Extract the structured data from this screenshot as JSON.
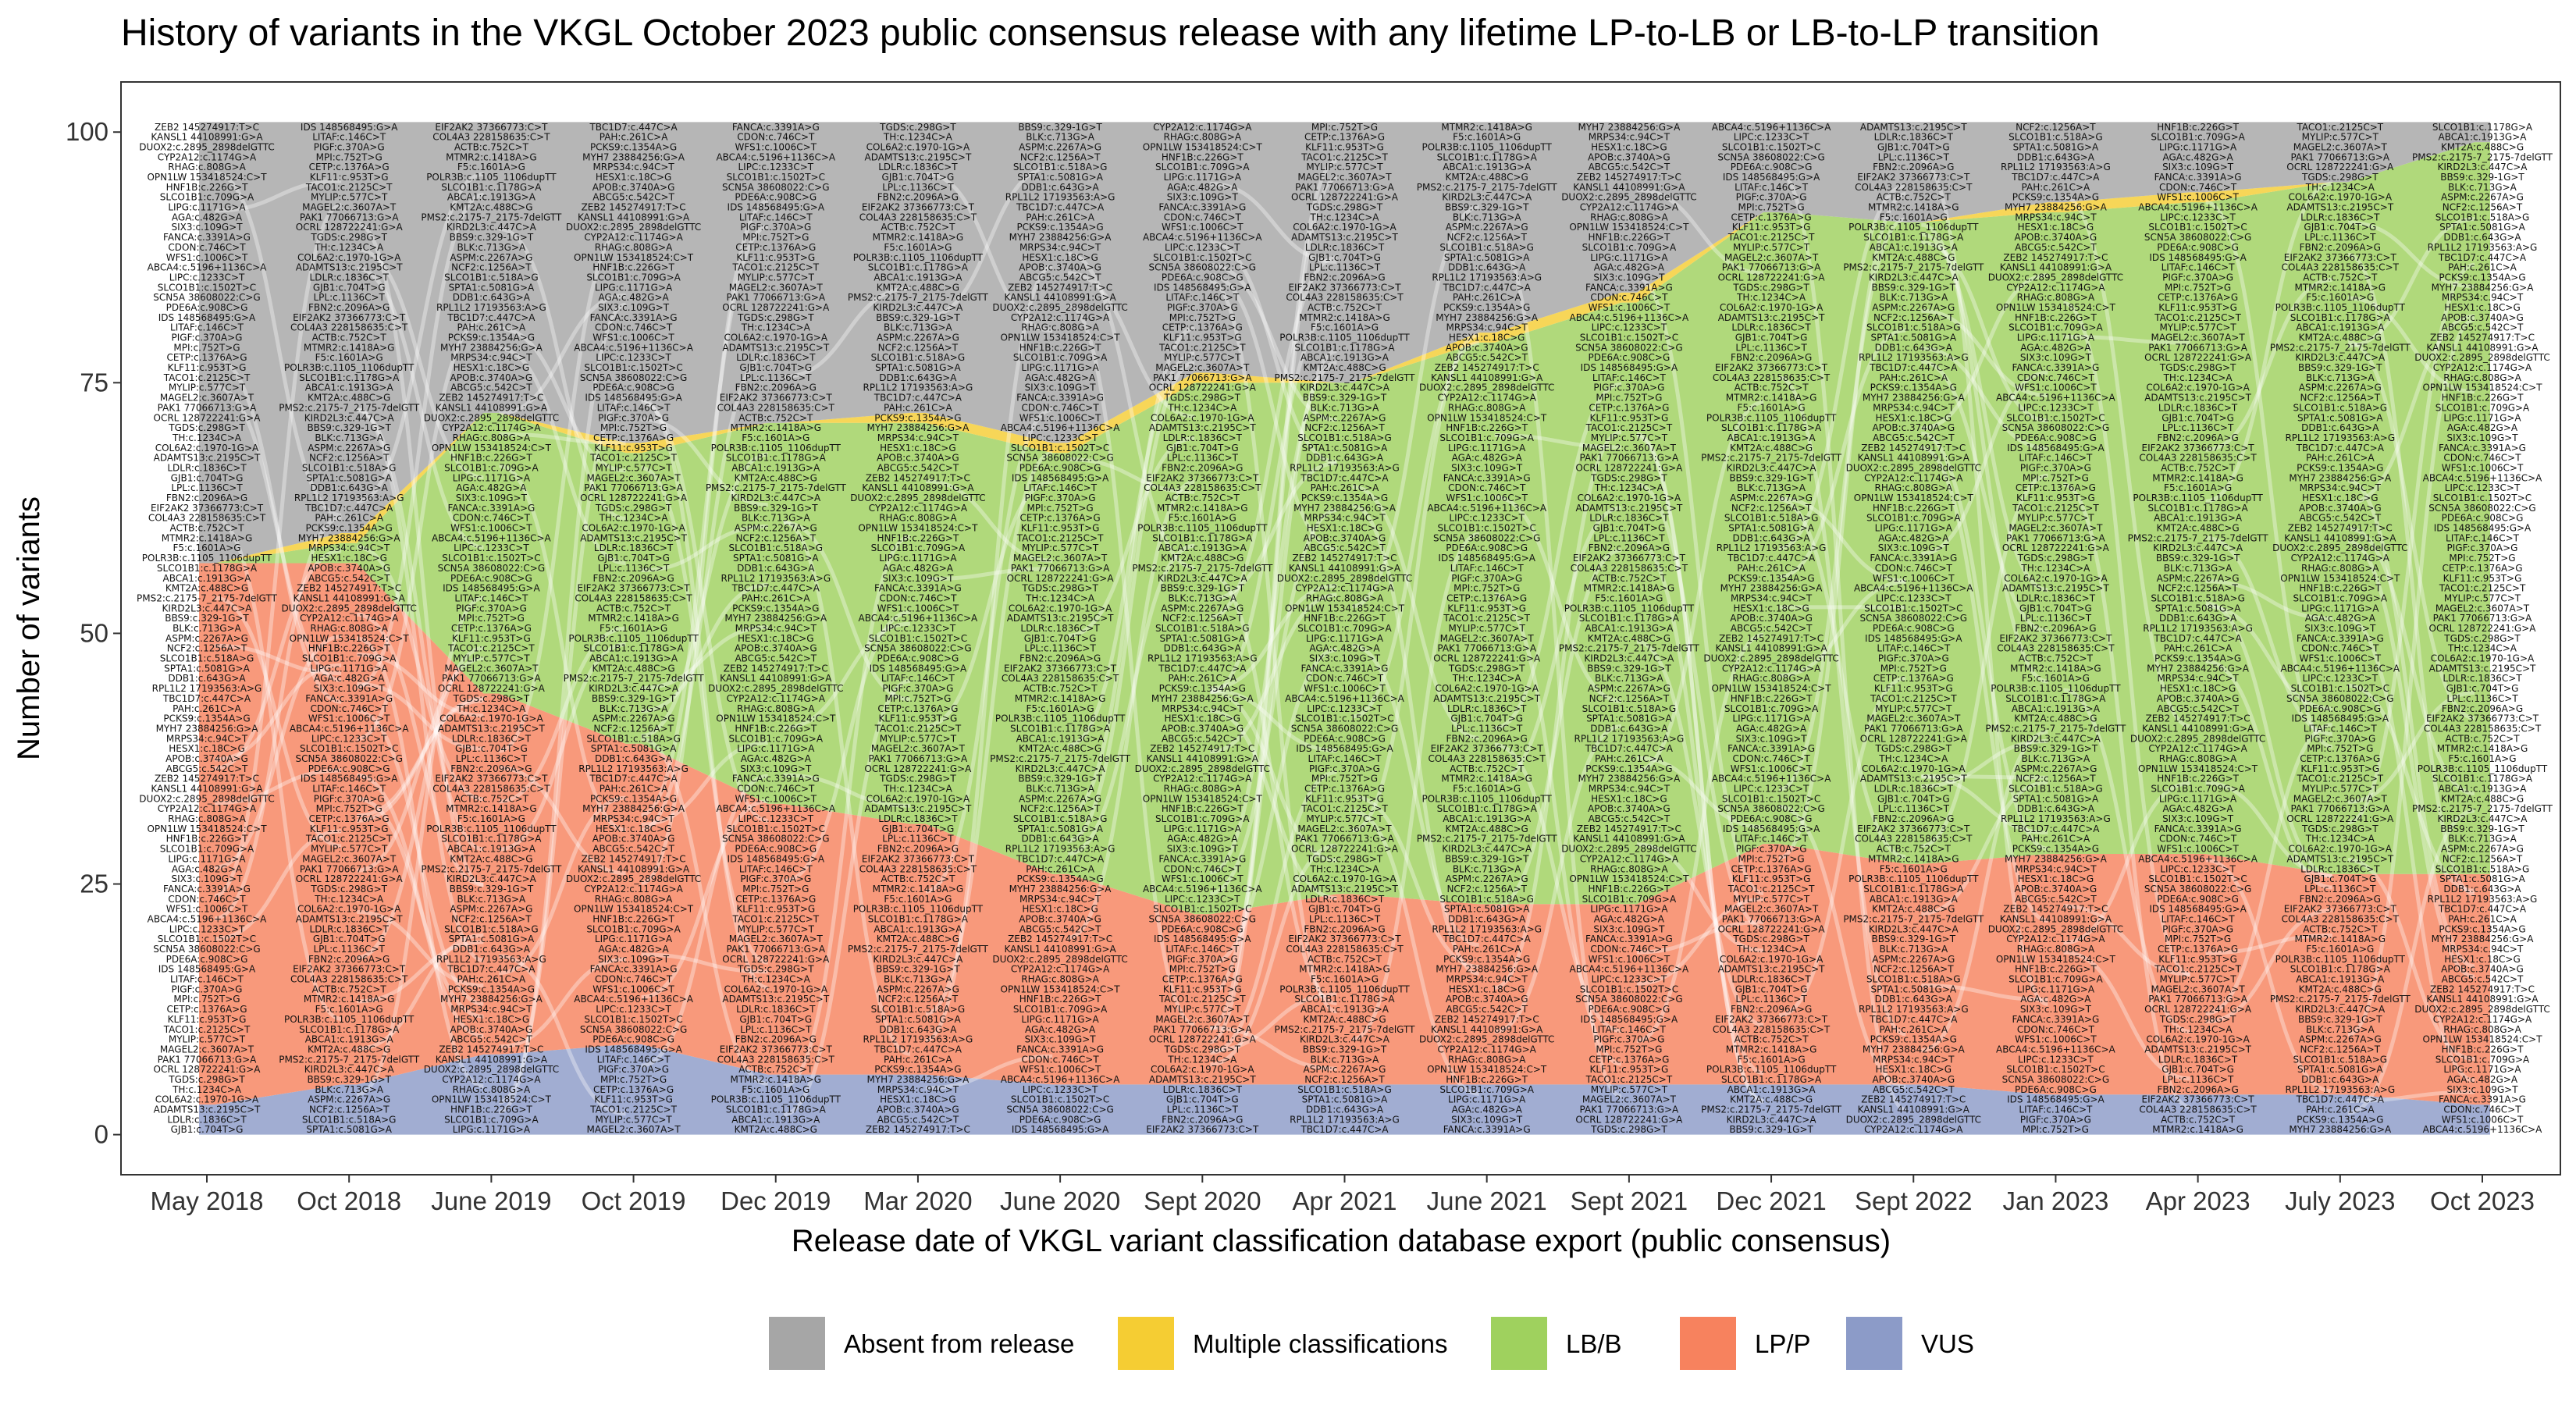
{
  "chart_data": {
    "type": "area",
    "title": "History of variants in the VKGL October 2023 public consensus release with any lifetime LP-to-LB or LB-to-LP transition",
    "xlabel": "Release date of VKGL variant classification database export (public consensus)",
    "ylabel": "Number of variants",
    "categories": [
      "May 2018",
      "Oct 2018",
      "June 2019",
      "Oct 2019",
      "Dec 2019",
      "Mar 2020",
      "June 2020",
      "Sept 2020",
      "Apr 2021",
      "June 2021",
      "Sept 2021",
      "Dec 2021",
      "Sept 2022",
      "Jan 2023",
      "Apr 2023",
      "July 2023",
      "Oct 2023"
    ],
    "y_ticks": [
      0,
      25,
      50,
      75,
      100
    ],
    "ylim": [
      -4,
      105
    ],
    "grid": false,
    "legend_position": "bottom",
    "legend": [
      {
        "name": "Absent from release",
        "color": "#a6a6a6"
      },
      {
        "name": "Multiple classifications",
        "color": "#f5cd33"
      },
      {
        "name": "LB/B",
        "color": "#9fd15e"
      },
      {
        "name": "LP/P",
        "color": "#f7825e"
      },
      {
        "name": "VUS",
        "color": "#8c9bc8"
      }
    ],
    "series": [
      {
        "name": "VUS",
        "values": [
          3,
          5,
          8,
          9,
          6,
          6,
          5,
          5,
          5,
          5,
          5,
          5,
          5,
          4,
          4,
          4,
          3
        ]
      },
      {
        "name": "LP/P",
        "values": [
          54,
          52,
          36,
          30,
          27,
          25,
          21,
          17,
          19,
          18,
          18,
          24,
          22,
          24,
          24,
          22,
          23
        ]
      },
      {
        "name": "LB/B",
        "values": [
          0,
          2,
          28,
          29,
          38,
          40,
          42,
          53,
          51,
          56,
          60,
          63,
          64,
          64,
          65,
          69,
          73
        ]
      },
      {
        "name": "Multiple classifications",
        "values": [
          0,
          1,
          0,
          1,
          0,
          1,
          1,
          1,
          0,
          1,
          1,
          0,
          0,
          1,
          1,
          0,
          0
        ]
      },
      {
        "name": "Absent from release",
        "values": [
          44,
          41,
          29,
          32,
          30,
          29,
          32,
          25,
          26,
          21,
          17,
          9,
          10,
          8,
          7,
          6,
          2
        ]
      }
    ],
    "variant_labels": [
      "ZEB2 145274917:T>C",
      "PAK1 77066713:G>A",
      "RPL1L2 17193563:A>G",
      "IDS 148568495:G>A",
      "PMS2:c.2175-7_2175-7delGTT",
      "SIX3:c.109G>T",
      "EIF2AK2 37366773:C>T",
      "KANSL1 44108991:G>A",
      "OCRL 128722241:G>A",
      "TBC1D7:c.447C>A",
      "LITAF:c.146C>T",
      "KIRD2L3:c.447C>A",
      "FANCA:c.3391A>G",
      "COL4A3 228158635:C>T",
      "DUOX2:c.2895_2898delGTTC",
      "TGDS:c.298G>T",
      "PAH:c.261C>A",
      "PIGF:c.370A>G",
      "BBS9:c.329-1G>T",
      "CDON:c.746C>T",
      "ACTB:c.752C>T",
      "CYP2A12:c.1174G>A",
      "TH:c.1234C>A",
      "PCKS9:c.1354A>G",
      "MPI:c.752T>G",
      "BLK:c.713G>A",
      "WFS1:c.1006C>T",
      "MTMR2:c.1418A>G",
      "RHAG:c.808G>A",
      "COL6A2:c.1970-1G>A",
      "MYH7 23884256:G>A",
      "CETP:c.1376A>G",
      "ASPM:c.2267A>G",
      "ABCA4:c.5196+1136C>A",
      "F5:c.1601A>G",
      "OPN1LW 153418524:C>T",
      "ADAMTS13:c.2195C>T",
      "MRPS34:c.94C>T",
      "KLF11:c.953T>G",
      "NCF2:c.1256A>T",
      "LIPC:c.1233C>T",
      "POLR3B:c.1105_1106dupTT",
      "HNF1B:c.226G>T",
      "LDLR:c.1836C>T",
      "HESX1:c.18C>G",
      "TACO1:c.2125C>T",
      "SLCO1B1:c.518A>G",
      "SLCO1B1:c.1502T>C",
      "SLCO1B1:c.1178G>A",
      "SLCO1B1:c.709G>A",
      "GJB1:c.704T>G",
      "APOB:c.3740A>G",
      "MYLIP:c.577C>T",
      "SPTA1:c.5081G>A",
      "SCN5A 38608022:C>G",
      "ABCA1:c.1913G>A",
      "LIPG:c.1171G>A",
      "LPL:c.1136C>T",
      "ABCG5:c.542C>T",
      "MAGEL2:c.3607A>T",
      "DDB1:c.643G>A",
      "PDE6A:c.908C>G",
      "KMT2A:c.488C>G",
      "AGA:c.482G>A",
      "FBN2:c.2096A>G"
    ]
  }
}
